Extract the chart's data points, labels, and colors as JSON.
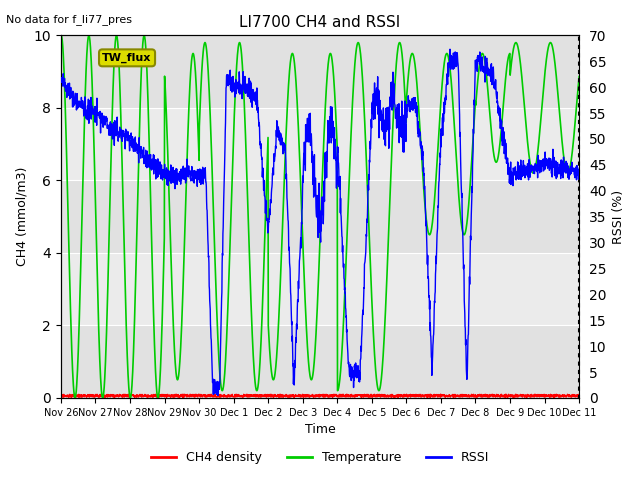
{
  "title": "LI7700 CH4 and RSSI",
  "top_left_text": "No data for f_li77_pres",
  "ylabel_left": "CH4 (mmol/m3)",
  "ylabel_right": "RSSI (%)",
  "xlabel": "Time",
  "ylim_left": [
    0,
    10
  ],
  "ylim_right": [
    0,
    70
  ],
  "yticks_left": [
    0,
    2,
    4,
    6,
    8,
    10
  ],
  "yticks_right": [
    0,
    5,
    10,
    15,
    20,
    25,
    30,
    35,
    40,
    45,
    50,
    55,
    60,
    65,
    70
  ],
  "background_color": "#ffffff",
  "plot_bg_color": "#f0f0f0",
  "ch4_color": "#ff0000",
  "temp_color": "#00cc00",
  "rssi_color": "#0000ff",
  "legend_items": [
    "CH4 density",
    "Temperature",
    "RSSI"
  ],
  "annotation_box": {
    "text": "TW_flux",
    "color": "#dddd00",
    "border": "#888800"
  },
  "xtick_labels": [
    "Nov 26",
    "Nov 27",
    "Nov 28",
    "Nov 29",
    "Nov 30",
    "Dec 1",
    "Dec 2",
    "Dec 3",
    "Dec 4",
    "Dec 5",
    "Dec 6",
    "Dec 7",
    "Dec 8",
    "Dec 9",
    "Dec 10",
    "Dec 11"
  ]
}
